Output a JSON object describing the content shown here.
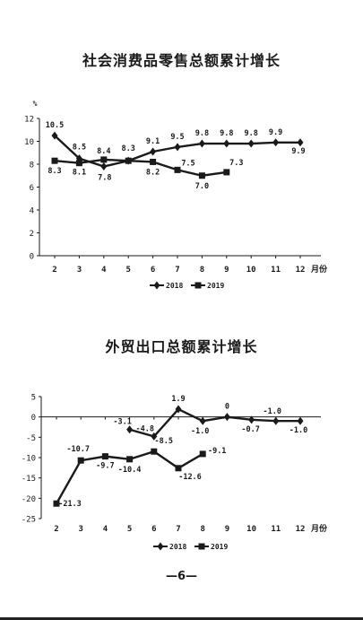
{
  "page_number": "—6—",
  "chart_data": [
    {
      "type": "line",
      "title": "社会消费品零售总额累计增长",
      "ylabel": "%",
      "xlabel": "月份",
      "categories": [
        "2",
        "3",
        "4",
        "5",
        "6",
        "7",
        "8",
        "9",
        "10",
        "11",
        "12"
      ],
      "yticks": [
        "0",
        "2",
        "4",
        "6",
        "8",
        "10",
        "12"
      ],
      "ylim": [
        0,
        12
      ],
      "grid": false,
      "legend_position": "bottom",
      "series": [
        {
          "name": "2018",
          "marker": "diamond",
          "values": [
            10.5,
            8.5,
            7.8,
            8.3,
            9.1,
            9.5,
            9.8,
            9.8,
            9.8,
            9.9,
            9.9
          ],
          "labels": [
            "10.5",
            "8.5",
            "7.8",
            "8.3",
            "9.1",
            "9.5",
            "9.8",
            "9.8",
            "9.8",
            "9.9",
            "9.9"
          ]
        },
        {
          "name": "2019",
          "marker": "square",
          "values": [
            8.3,
            8.1,
            8.4,
            8.3,
            8.2,
            7.5,
            7.0,
            7.3,
            null,
            null,
            null
          ],
          "labels": [
            "8.3",
            "8.1",
            "8.4",
            "",
            "8.2",
            "7.5",
            "7.0",
            "7.3",
            "",
            "",
            ""
          ]
        }
      ]
    },
    {
      "type": "line",
      "title": "外贸出口总额累计增长",
      "ylabel": "%",
      "xlabel": "月份",
      "categories": [
        "2",
        "3",
        "4",
        "5",
        "6",
        "7",
        "8",
        "9",
        "10",
        "11",
        "12"
      ],
      "yticks": [
        "5",
        "0",
        "-5",
        "-10",
        "-15",
        "-20",
        "-25"
      ],
      "ylim": [
        -25,
        5
      ],
      "grid": false,
      "legend_position": "bottom",
      "series": [
        {
          "name": "2018",
          "marker": "diamond",
          "values": [
            null,
            null,
            null,
            -3.1,
            -4.8,
            1.9,
            -1.0,
            0,
            -0.7,
            -1.0,
            -1.0
          ],
          "labels": [
            "",
            "",
            "",
            "-3.1",
            "-4.8",
            "1.9",
            "-1.0",
            "0",
            "-0.7",
            "-1.0",
            "-1.0"
          ]
        },
        {
          "name": "2019",
          "marker": "square",
          "values": [
            -21.3,
            -10.7,
            -9.7,
            -10.4,
            -8.5,
            -12.6,
            -9.1,
            null,
            null,
            null,
            null
          ],
          "labels": [
            "-21.3",
            "-10.7",
            "-9.7",
            "-10.4",
            "-8.5",
            "-12.6",
            "-9.1",
            "",
            "",
            "",
            ""
          ]
        }
      ]
    }
  ]
}
